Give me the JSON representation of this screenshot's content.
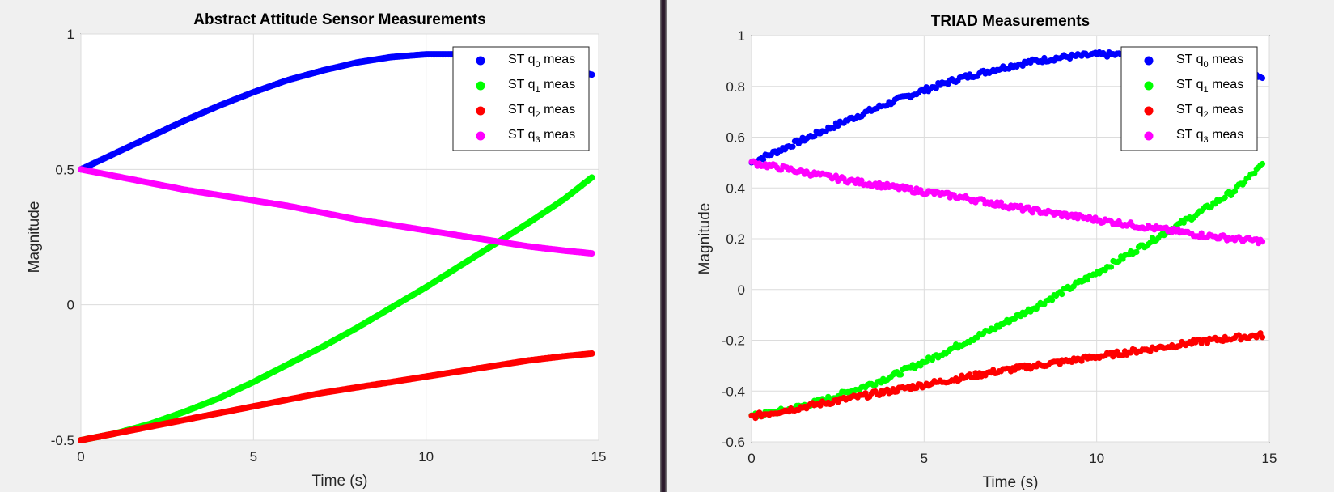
{
  "charts": [
    {
      "type": "scatter",
      "title": "Abstract Attitude Sensor Measurements",
      "xlabel": "Time (s)",
      "ylabel": "Magnitude",
      "xlim": [
        0,
        15
      ],
      "ylim": [
        -0.5,
        1
      ],
      "xticks": [
        "0",
        "5",
        "10",
        "15"
      ],
      "yticks": [
        "-0.5",
        "0",
        "0.5",
        "1"
      ],
      "grid": true,
      "legend_position": "top-right",
      "noisy": false,
      "legend": [
        {
          "prefix": "ST q",
          "sub": "0",
          "suffix": " meas",
          "color": "#0000ff"
        },
        {
          "prefix": "ST q",
          "sub": "1",
          "suffix": " meas",
          "color": "#00ff00"
        },
        {
          "prefix": "ST q",
          "sub": "2",
          "suffix": " meas",
          "color": "#ff0000"
        },
        {
          "prefix": "ST q",
          "sub": "3",
          "suffix": " meas",
          "color": "#ff00ff"
        }
      ]
    },
    {
      "type": "scatter",
      "title": "TRIAD Measurements",
      "xlabel": "Time (s)",
      "ylabel": "Magnitude",
      "xlim": [
        0,
        15
      ],
      "ylim": [
        -0.6,
        1
      ],
      "xticks": [
        "0",
        "5",
        "10",
        "15"
      ],
      "yticks": [
        "-0.6",
        "-0.4",
        "-0.2",
        "0",
        "0.2",
        "0.4",
        "0.6",
        "0.8",
        "1"
      ],
      "grid": true,
      "legend_position": "top-right",
      "noisy": true,
      "legend": [
        {
          "prefix": "ST q",
          "sub": "0",
          "suffix": " meas",
          "color": "#0000ff"
        },
        {
          "prefix": "ST q",
          "sub": "1",
          "suffix": " meas",
          "color": "#00ff00"
        },
        {
          "prefix": "ST q",
          "sub": "2",
          "suffix": " meas",
          "color": "#ff0000"
        },
        {
          "prefix": "ST q",
          "sub": "3",
          "suffix": " meas",
          "color": "#ff00ff"
        }
      ]
    }
  ],
  "chart_data": [
    {
      "type": "scatter",
      "title": "Abstract Attitude Sensor Measurements",
      "xlabel": "Time (s)",
      "ylabel": "Magnitude",
      "xlim": [
        0,
        15
      ],
      "ylim": [
        -0.5,
        1
      ],
      "x": [
        0,
        1,
        2,
        3,
        4,
        5,
        6,
        7,
        8,
        9,
        10,
        11,
        12,
        13,
        14,
        14.8
      ],
      "series": [
        {
          "name": "ST q0 meas",
          "color": "#0000ff",
          "values": [
            0.5,
            0.56,
            0.62,
            0.68,
            0.735,
            0.785,
            0.83,
            0.865,
            0.895,
            0.915,
            0.925,
            0.925,
            0.915,
            0.9,
            0.875,
            0.85
          ]
        },
        {
          "name": "ST q1 meas",
          "color": "#00ff00",
          "values": [
            -0.5,
            -0.475,
            -0.44,
            -0.395,
            -0.345,
            -0.285,
            -0.22,
            -0.155,
            -0.085,
            -0.01,
            0.065,
            0.145,
            0.225,
            0.305,
            0.39,
            0.47
          ]
        },
        {
          "name": "ST q2 meas",
          "color": "#ff0000",
          "values": [
            -0.5,
            -0.475,
            -0.45,
            -0.425,
            -0.4,
            -0.375,
            -0.35,
            -0.325,
            -0.305,
            -0.285,
            -0.265,
            -0.245,
            -0.225,
            -0.205,
            -0.19,
            -0.18
          ]
        },
        {
          "name": "ST q3 meas",
          "color": "#ff00ff",
          "values": [
            0.5,
            0.475,
            0.45,
            0.425,
            0.405,
            0.385,
            0.365,
            0.34,
            0.315,
            0.295,
            0.275,
            0.255,
            0.235,
            0.215,
            0.2,
            0.19
          ]
        }
      ]
    },
    {
      "type": "scatter",
      "title": "TRIAD Measurements",
      "xlabel": "Time (s)",
      "ylabel": "Magnitude",
      "xlim": [
        0,
        15
      ],
      "ylim": [
        -0.6,
        1
      ],
      "x": [
        0,
        1,
        2,
        3,
        4,
        5,
        6,
        7,
        8,
        9,
        10,
        11,
        12,
        13,
        14,
        14.8
      ],
      "series": [
        {
          "name": "ST q0 meas",
          "color": "#0000ff",
          "values": [
            0.5,
            0.56,
            0.62,
            0.68,
            0.735,
            0.785,
            0.83,
            0.865,
            0.895,
            0.915,
            0.925,
            0.925,
            0.915,
            0.9,
            0.875,
            0.84
          ]
        },
        {
          "name": "ST q1 meas",
          "color": "#00ff00",
          "values": [
            -0.5,
            -0.475,
            -0.44,
            -0.395,
            -0.345,
            -0.285,
            -0.22,
            -0.155,
            -0.085,
            -0.01,
            0.065,
            0.145,
            0.225,
            0.305,
            0.39,
            0.49
          ]
        },
        {
          "name": "ST q2 meas",
          "color": "#ff0000",
          "values": [
            -0.5,
            -0.475,
            -0.45,
            -0.425,
            -0.4,
            -0.375,
            -0.35,
            -0.325,
            -0.305,
            -0.285,
            -0.265,
            -0.245,
            -0.225,
            -0.205,
            -0.19,
            -0.18
          ]
        },
        {
          "name": "ST q3 meas",
          "color": "#ff00ff",
          "values": [
            0.5,
            0.475,
            0.45,
            0.425,
            0.405,
            0.385,
            0.365,
            0.34,
            0.315,
            0.295,
            0.275,
            0.255,
            0.235,
            0.215,
            0.2,
            0.19
          ]
        }
      ]
    }
  ]
}
